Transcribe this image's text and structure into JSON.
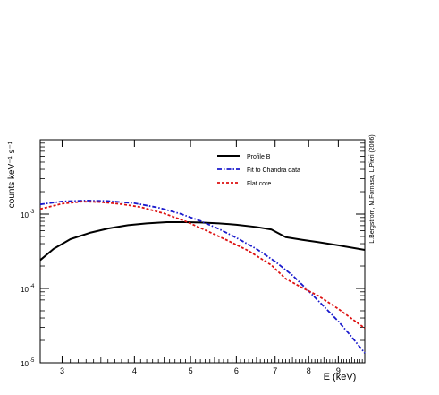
{
  "chart_data": {
    "type": "line",
    "xlabel": "E (keV)",
    "ylabel": "counts keV⁻¹ s⁻¹",
    "x_scale": "log",
    "y_scale": "log",
    "xlim": [
      2.75,
      10.0
    ],
    "ylim": [
      1e-05,
      0.01
    ],
    "x_ticks": [
      {
        "value": 3,
        "label": "3"
      },
      {
        "value": 4,
        "label": "4"
      },
      {
        "value": 5,
        "label": "5"
      },
      {
        "value": 6,
        "label": "6"
      },
      {
        "value": 7,
        "label": "7"
      },
      {
        "value": 8,
        "label": "8"
      },
      {
        "value": 9,
        "label": "9"
      }
    ],
    "y_ticks": [
      {
        "value": 1e-05,
        "base": "10",
        "exp": "-5"
      },
      {
        "value": 0.0001,
        "base": "10",
        "exp": "-4"
      },
      {
        "value": 0.001,
        "base": "10",
        "exp": "-3"
      }
    ],
    "grid": false,
    "legend_position": "top-right",
    "side_annotation": "L.Bergstrom, M.Fornasa, L.Pieri (2006)",
    "series": [
      {
        "name": "Profile B",
        "color": "#000000",
        "style": "solid",
        "x": [
          2.75,
          2.9,
          3.1,
          3.35,
          3.6,
          3.9,
          4.2,
          4.55,
          4.9,
          5.2,
          5.6,
          6.0,
          6.5,
          6.9,
          7.3,
          7.8,
          8.3,
          9.0,
          10.0
        ],
        "y": [
          0.00024,
          0.00034,
          0.00046,
          0.00056,
          0.00064,
          0.00071,
          0.00075,
          0.00078,
          0.00078,
          0.00077,
          0.00075,
          0.00072,
          0.00067,
          0.00062,
          0.00049,
          0.00045,
          0.00042,
          0.00038,
          0.00033
        ]
      },
      {
        "name": "Fit to Chandra data",
        "color": "#1a1acc",
        "style": "dash-dot",
        "x": [
          2.75,
          3.0,
          3.3,
          3.6,
          4.0,
          4.4,
          4.8,
          5.2,
          5.6,
          6.0,
          6.5,
          7.0,
          7.5,
          8.0,
          8.5,
          9.0,
          9.5,
          10.0
        ],
        "y": [
          0.00135,
          0.00148,
          0.00152,
          0.0015,
          0.0014,
          0.00122,
          0.00101,
          0.00081,
          0.00063,
          0.00048,
          0.00034,
          0.00023,
          0.00015,
          9.21e-05,
          5.71e-05,
          3.61e-05,
          2.21e-05,
          1.35e-05
        ]
      },
      {
        "name": "Flat core",
        "color": "#dd1111",
        "style": "dotted",
        "x": [
          2.75,
          3.0,
          3.25,
          3.5,
          3.8,
          4.1,
          4.5,
          4.9,
          5.3,
          5.8,
          6.3,
          6.9,
          7.3,
          7.8,
          8.3,
          9.0,
          10.0
        ],
        "y": [
          0.00117,
          0.00138,
          0.00147,
          0.00145,
          0.00136,
          0.00124,
          0.00102,
          0.0008,
          0.00061,
          0.00044,
          0.00032,
          0.000205,
          0.000135,
          0.000102,
          8.01e-05,
          5.31e-05,
          2.91e-05
        ]
      }
    ]
  }
}
